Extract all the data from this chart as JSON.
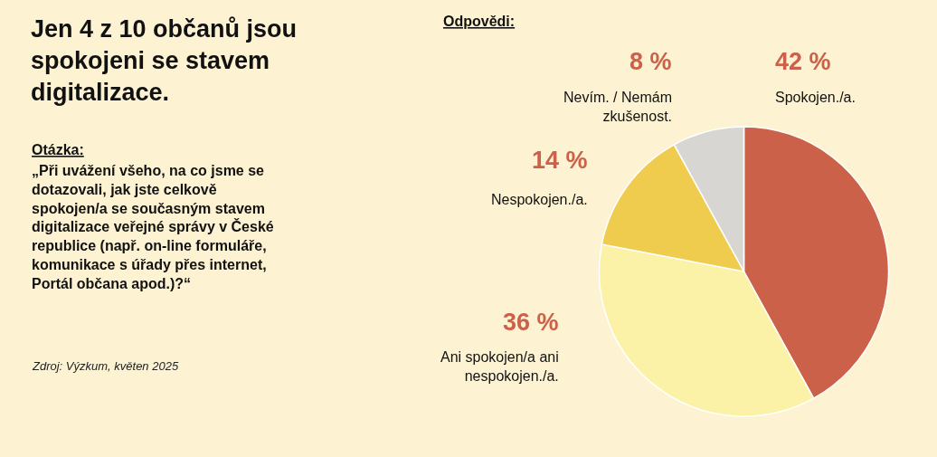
{
  "chart_data": {
    "type": "pie",
    "title": "Jen 4 z 10 občanů jsou spokojeni se stavem digitalizace.",
    "categories": [
      "Spokojen./a.",
      "Ani spokojen/a ani nespokojen./a.",
      "Nespokojen./a.",
      "Nevím. / Nemám zkušenost."
    ],
    "values": [
      42,
      36,
      14,
      8
    ],
    "value_labels": [
      "42 %",
      "36 %",
      "14 %",
      "8 %"
    ],
    "colors": [
      "#cc6149",
      "#fbf2a8",
      "#f0cc4e",
      "#d8d6d2"
    ],
    "annotations": [
      "Otázka:",
      "„Při uvážení všeho, na co jsme se dotazovali, jak jste celkově spokojen/a se současným stavem digitalizace veřejné správy v České republice (např. on-line formuláře, komunikace s úřady přes internet, Portál občana apod.)?“",
      "Zdroj: Výzkum, květen 2025",
      "Odpovědi:"
    ],
    "legend": false
  }
}
